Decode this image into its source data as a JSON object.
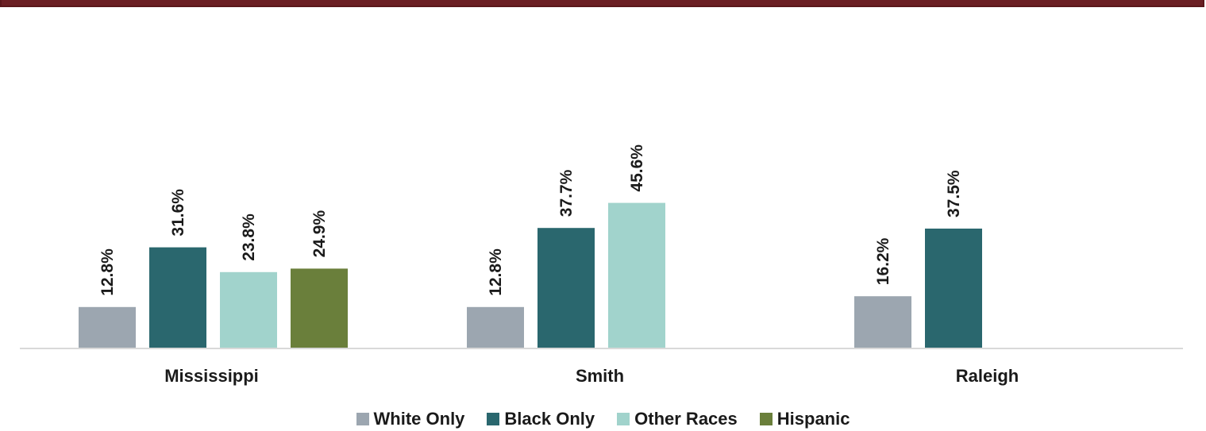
{
  "chart_data": {
    "type": "bar",
    "categories": [
      "Mississippi",
      "Smith",
      "Raleigh"
    ],
    "series": [
      {
        "name": "White Only",
        "color": "#9ca6b0",
        "values": [
          12.8,
          12.8,
          16.2
        ],
        "labels": [
          "12.8%",
          "12.8%",
          "16.2%"
        ]
      },
      {
        "name": "Black Only",
        "color": "#2a676e",
        "values": [
          31.6,
          37.7,
          37.5
        ],
        "labels": [
          "31.6%",
          "37.7%",
          "37.5%"
        ]
      },
      {
        "name": "Other Races",
        "color": "#a1d3cc",
        "values": [
          23.8,
          45.6,
          null
        ],
        "labels": [
          "23.8%",
          "45.6%",
          null
        ]
      },
      {
        "name": "Hispanic",
        "color": "#6a7f3b",
        "values": [
          24.9,
          null,
          null
        ],
        "labels": [
          "24.9%",
          null,
          null
        ]
      }
    ],
    "ylim": [
      0,
      100
    ],
    "grid": false,
    "legend_position": "bottom"
  }
}
